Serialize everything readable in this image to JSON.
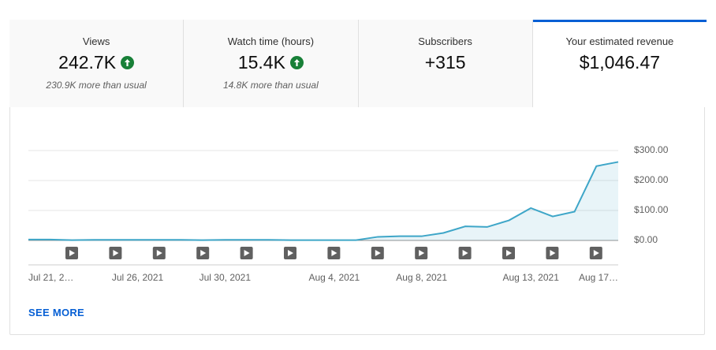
{
  "tabs": [
    {
      "label": "Views",
      "value": "242.7K",
      "note": "230.9K more than usual",
      "trend": "up"
    },
    {
      "label": "Watch time (hours)",
      "value": "15.4K",
      "note": "14.8K more than usual",
      "trend": "up"
    },
    {
      "label": "Subscribers",
      "value": "+315"
    },
    {
      "label": "Your estimated revenue",
      "value": "$1,046.47",
      "selected": true
    }
  ],
  "chart_data": {
    "type": "area",
    "categories": [
      "Jul 21, 2…",
      null,
      null,
      null,
      null,
      "Jul 26, 2021",
      null,
      null,
      null,
      "Jul 30, 2021",
      null,
      null,
      null,
      null,
      "Aug 4, 2021",
      null,
      null,
      null,
      "Aug 8, 2021",
      null,
      null,
      null,
      null,
      "Aug 13, 2021",
      null,
      null,
      null,
      "Aug 17…"
    ],
    "series": [
      {
        "color": "#3ea6c8",
        "values": [
          3,
          3,
          1,
          2,
          2,
          2,
          2,
          2,
          1,
          2,
          2,
          2,
          1,
          1,
          1,
          1,
          12,
          14,
          14,
          25,
          47,
          45,
          67,
          108,
          80,
          96,
          248,
          262
        ]
      }
    ],
    "ylim": [
      0,
      300
    ],
    "yticks": [
      {
        "value": 0,
        "label": "$0.00"
      },
      {
        "value": 100,
        "label": "$100.00"
      },
      {
        "value": 200,
        "label": "$200.00"
      },
      {
        "value": 300,
        "label": "$300.00"
      }
    ],
    "grid": true
  },
  "link": "SEE MORE"
}
